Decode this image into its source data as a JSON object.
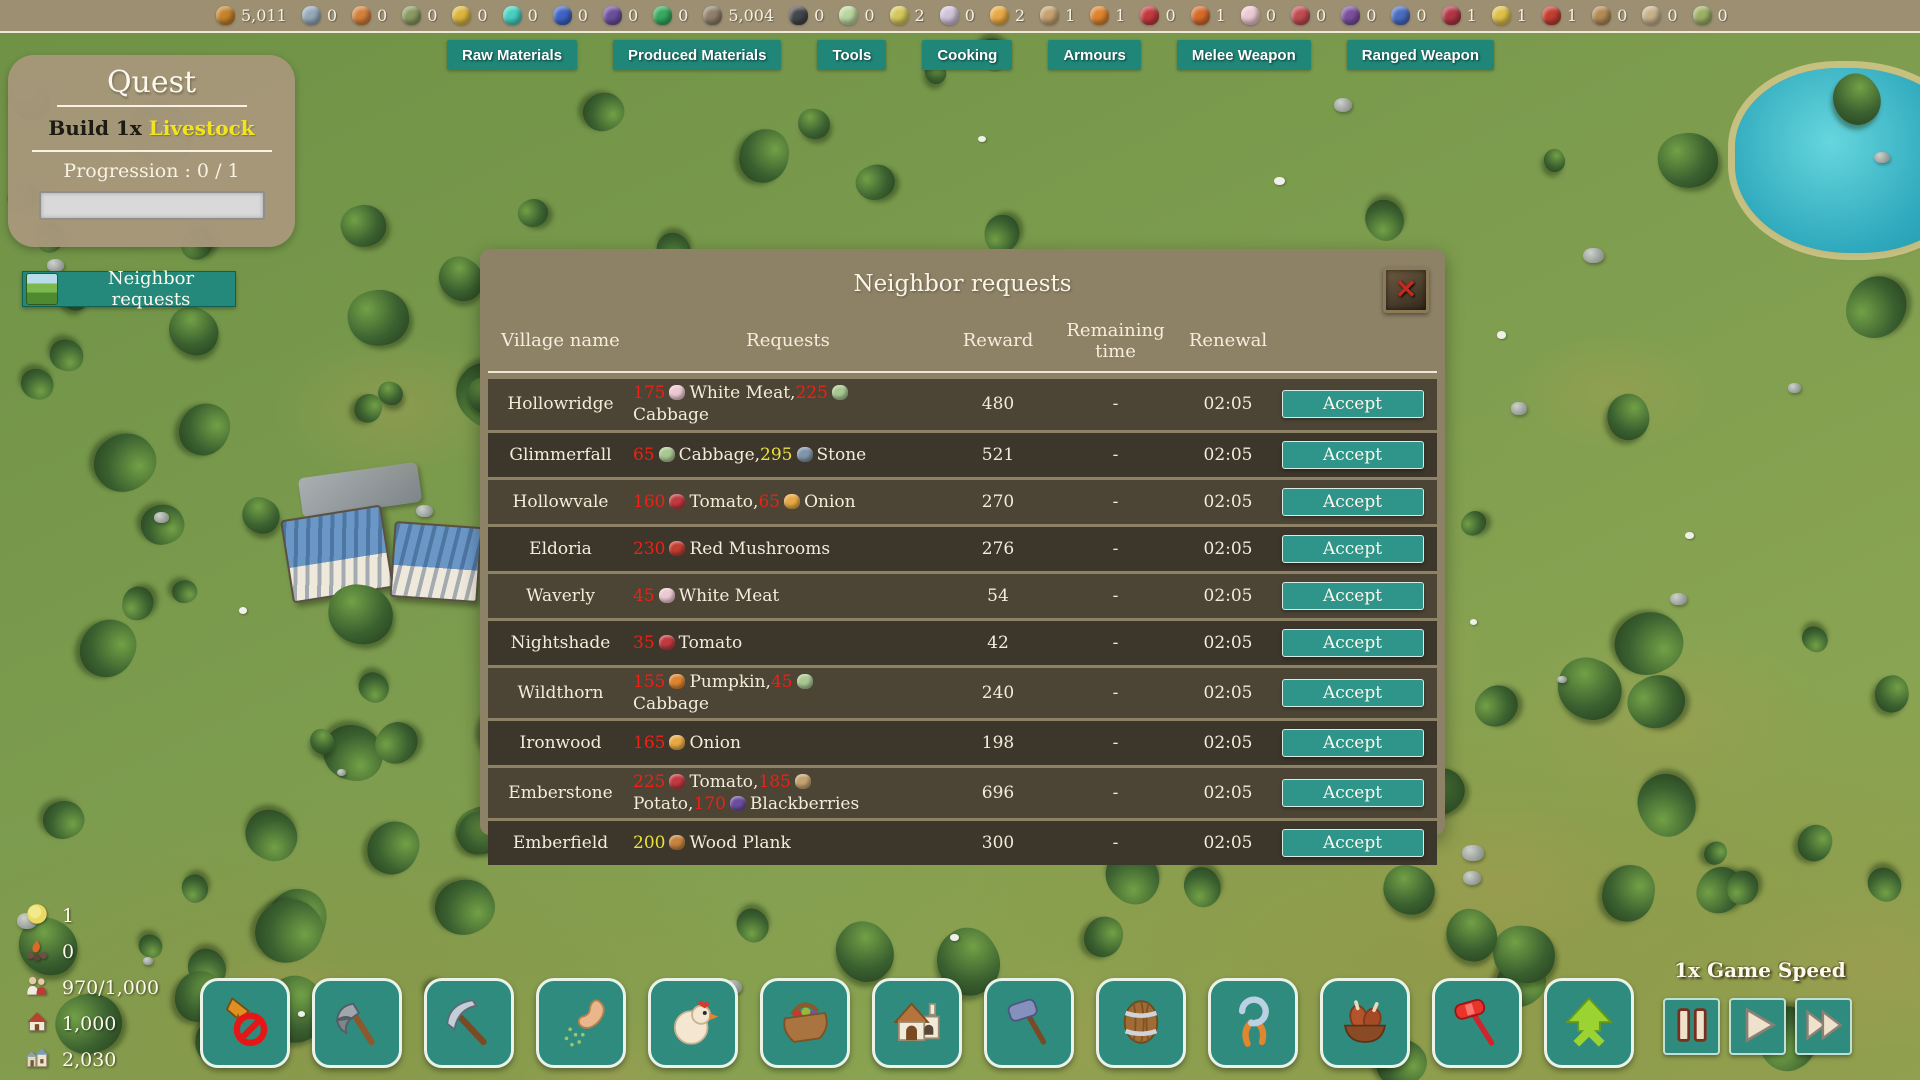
{
  "top_bar": {
    "resources": [
      {
        "name": "wood",
        "count": "5,011",
        "color": "#c5832b"
      },
      {
        "name": "blue-stone",
        "count": "0",
        "color": "#93a9b8"
      },
      {
        "name": "copper-ore",
        "count": "0",
        "color": "#d2803a"
      },
      {
        "name": "green-ore",
        "count": "0",
        "color": "#8a9a62"
      },
      {
        "name": "gold-ore",
        "count": "0",
        "color": "#dcb53f"
      },
      {
        "name": "teal-gem",
        "count": "0",
        "color": "#46cfc0"
      },
      {
        "name": "blue-ore",
        "count": "0",
        "color": "#3e63c4"
      },
      {
        "name": "purple-crystal",
        "count": "0",
        "color": "#6b4f9e"
      },
      {
        "name": "green-gem",
        "count": "0",
        "color": "#35a95e"
      },
      {
        "name": "stone",
        "count": "5,004",
        "color": "#8f7f6a"
      },
      {
        "name": "coal",
        "count": "0",
        "color": "#45454d"
      },
      {
        "name": "cauliflower",
        "count": "0",
        "color": "#bad69e"
      },
      {
        "name": "corn",
        "count": "2",
        "color": "#d5c75a"
      },
      {
        "name": "garlic",
        "count": "0",
        "color": "#cfc3d8"
      },
      {
        "name": "onion",
        "count": "2",
        "color": "#e8a945"
      },
      {
        "name": "potato",
        "count": "1",
        "color": "#c4a271"
      },
      {
        "name": "pumpkin",
        "count": "1",
        "color": "#dd8430"
      },
      {
        "name": "tomato",
        "count": "0",
        "color": "#c23a40"
      },
      {
        "name": "carrot",
        "count": "1",
        "color": "#d56b2c"
      },
      {
        "name": "white-meat",
        "count": "0",
        "color": "#ecc9d2"
      },
      {
        "name": "red-meat",
        "count": "0",
        "color": "#c04c50"
      },
      {
        "name": "grapes",
        "count": "0",
        "color": "#7a4f9e"
      },
      {
        "name": "blueberries",
        "count": "0",
        "color": "#4a6cc0"
      },
      {
        "name": "cherries",
        "count": "1",
        "color": "#b03644"
      },
      {
        "name": "yellow-berries",
        "count": "1",
        "color": "#ddc04a"
      },
      {
        "name": "red-mushroom",
        "count": "1",
        "color": "#c23d32"
      },
      {
        "name": "brown-mushroom",
        "count": "0",
        "color": "#b28a55"
      },
      {
        "name": "field-mushrooms",
        "count": "0",
        "color": "#c7b18d"
      },
      {
        "name": "green-mushroom",
        "count": "0",
        "color": "#9cb065"
      }
    ]
  },
  "tabs": [
    "Raw Materials",
    "Produced Materials",
    "Tools",
    "Cooking",
    "Armours",
    "Melee Weapon",
    "Ranged Weapon"
  ],
  "quest": {
    "title": "Quest",
    "objective_prefix": "Build 1x",
    "objective_target": "Livestock",
    "progression_label": "Progression : 0 / 1",
    "progress_percent": 0
  },
  "neighbor_button": {
    "label": "Neighbor requests"
  },
  "modal": {
    "title": "Neighbor requests",
    "close_glyph": "✕",
    "columns": [
      "Village name",
      "Requests",
      "Reward",
      "Remaining time",
      "Renewal"
    ],
    "accept_label": "Accept",
    "rows": [
      {
        "village": "Hollowridge",
        "requests": [
          {
            "qty": "175",
            "level": "red",
            "item": "White Meat",
            "icon": "white-meat-icon",
            "color": "#ecc9d2"
          },
          {
            "qty": "225",
            "level": "red",
            "item": "Cabbage",
            "icon": "cabbage-icon",
            "color": "#a9c891"
          }
        ],
        "reward": "480",
        "remaining": "-",
        "renewal": "02:05"
      },
      {
        "village": "Glimmerfall",
        "requests": [
          {
            "qty": "65",
            "level": "red",
            "item": "Cabbage",
            "icon": "cabbage-icon",
            "color": "#a9c891"
          },
          {
            "qty": "295",
            "level": "yellow",
            "item": "Stone",
            "icon": "stone-icon",
            "color": "#8296aa"
          }
        ],
        "reward": "521",
        "remaining": "-",
        "renewal": "02:05"
      },
      {
        "village": "Hollowvale",
        "requests": [
          {
            "qty": "160",
            "level": "red",
            "item": "Tomato",
            "icon": "tomato-icon",
            "color": "#c23a40"
          },
          {
            "qty": "65",
            "level": "red",
            "item": "Onion",
            "icon": "onion-icon",
            "color": "#e8a945"
          }
        ],
        "reward": "270",
        "remaining": "-",
        "renewal": "02:05"
      },
      {
        "village": "Eldoria",
        "requests": [
          {
            "qty": "230",
            "level": "red",
            "item": "Red Mushrooms",
            "icon": "red-mushroom-icon",
            "color": "#c23d32"
          }
        ],
        "reward": "276",
        "remaining": "-",
        "renewal": "02:05"
      },
      {
        "village": "Waverly",
        "requests": [
          {
            "qty": "45",
            "level": "red",
            "item": "White Meat",
            "icon": "white-meat-icon",
            "color": "#ecc9d2"
          }
        ],
        "reward": "54",
        "remaining": "-",
        "renewal": "02:05"
      },
      {
        "village": "Nightshade",
        "requests": [
          {
            "qty": "35",
            "level": "red",
            "item": "Tomato",
            "icon": "tomato-icon",
            "color": "#c23a40"
          }
        ],
        "reward": "42",
        "remaining": "-",
        "renewal": "02:05"
      },
      {
        "village": "Wildthorn",
        "requests": [
          {
            "qty": "155",
            "level": "red",
            "item": "Pumpkin",
            "icon": "pumpkin-icon",
            "color": "#dd8430"
          },
          {
            "qty": "45",
            "level": "red",
            "item": "Cabbage",
            "icon": "cabbage-icon",
            "color": "#a9c891"
          }
        ],
        "reward": "240",
        "remaining": "-",
        "renewal": "02:05"
      },
      {
        "village": "Ironwood",
        "requests": [
          {
            "qty": "165",
            "level": "red",
            "item": "Onion",
            "icon": "onion-icon",
            "color": "#e8a945"
          }
        ],
        "reward": "198",
        "remaining": "-",
        "renewal": "02:05"
      },
      {
        "village": "Emberstone",
        "requests": [
          {
            "qty": "225",
            "level": "red",
            "item": "Tomato",
            "icon": "tomato-icon",
            "color": "#c23a40"
          },
          {
            "qty": "185",
            "level": "red",
            "item": "Potato",
            "icon": "potato-icon",
            "color": "#c4a271"
          },
          {
            "qty": "170",
            "level": "red",
            "item": "Blackberries",
            "icon": "blackberries-icon",
            "color": "#6b4f9e"
          }
        ],
        "reward": "696",
        "remaining": "-",
        "renewal": "02:05"
      },
      {
        "village": "Emberfield",
        "requests": [
          {
            "qty": "200",
            "level": "yellow",
            "item": "Wood Plank",
            "icon": "wood-plank-icon",
            "color": "#c5833f"
          }
        ],
        "reward": "300",
        "remaining": "-",
        "renewal": "02:05"
      }
    ]
  },
  "bottom_left_stats": [
    {
      "name": "sun",
      "value": "1"
    },
    {
      "name": "campfire",
      "value": "0"
    },
    {
      "name": "villagers",
      "value": "970/1,000"
    },
    {
      "name": "houses",
      "value": "1,000"
    },
    {
      "name": "town",
      "value": "2,030"
    }
  ],
  "toolbar": {
    "buttons": [
      {
        "name": "cancel-selection"
      },
      {
        "name": "axe"
      },
      {
        "name": "pickaxe"
      },
      {
        "name": "sow-seeds"
      },
      {
        "name": "livestock"
      },
      {
        "name": "harvest-basket"
      },
      {
        "name": "build-house"
      },
      {
        "name": "mallet"
      },
      {
        "name": "barrel"
      },
      {
        "name": "pliers"
      },
      {
        "name": "cooked-meat"
      },
      {
        "name": "gavel"
      },
      {
        "name": "upgrade"
      }
    ]
  },
  "game_speed": {
    "label": "1x Game Speed",
    "buttons": [
      {
        "name": "pause"
      },
      {
        "name": "play"
      },
      {
        "name": "fast-forward"
      }
    ]
  }
}
